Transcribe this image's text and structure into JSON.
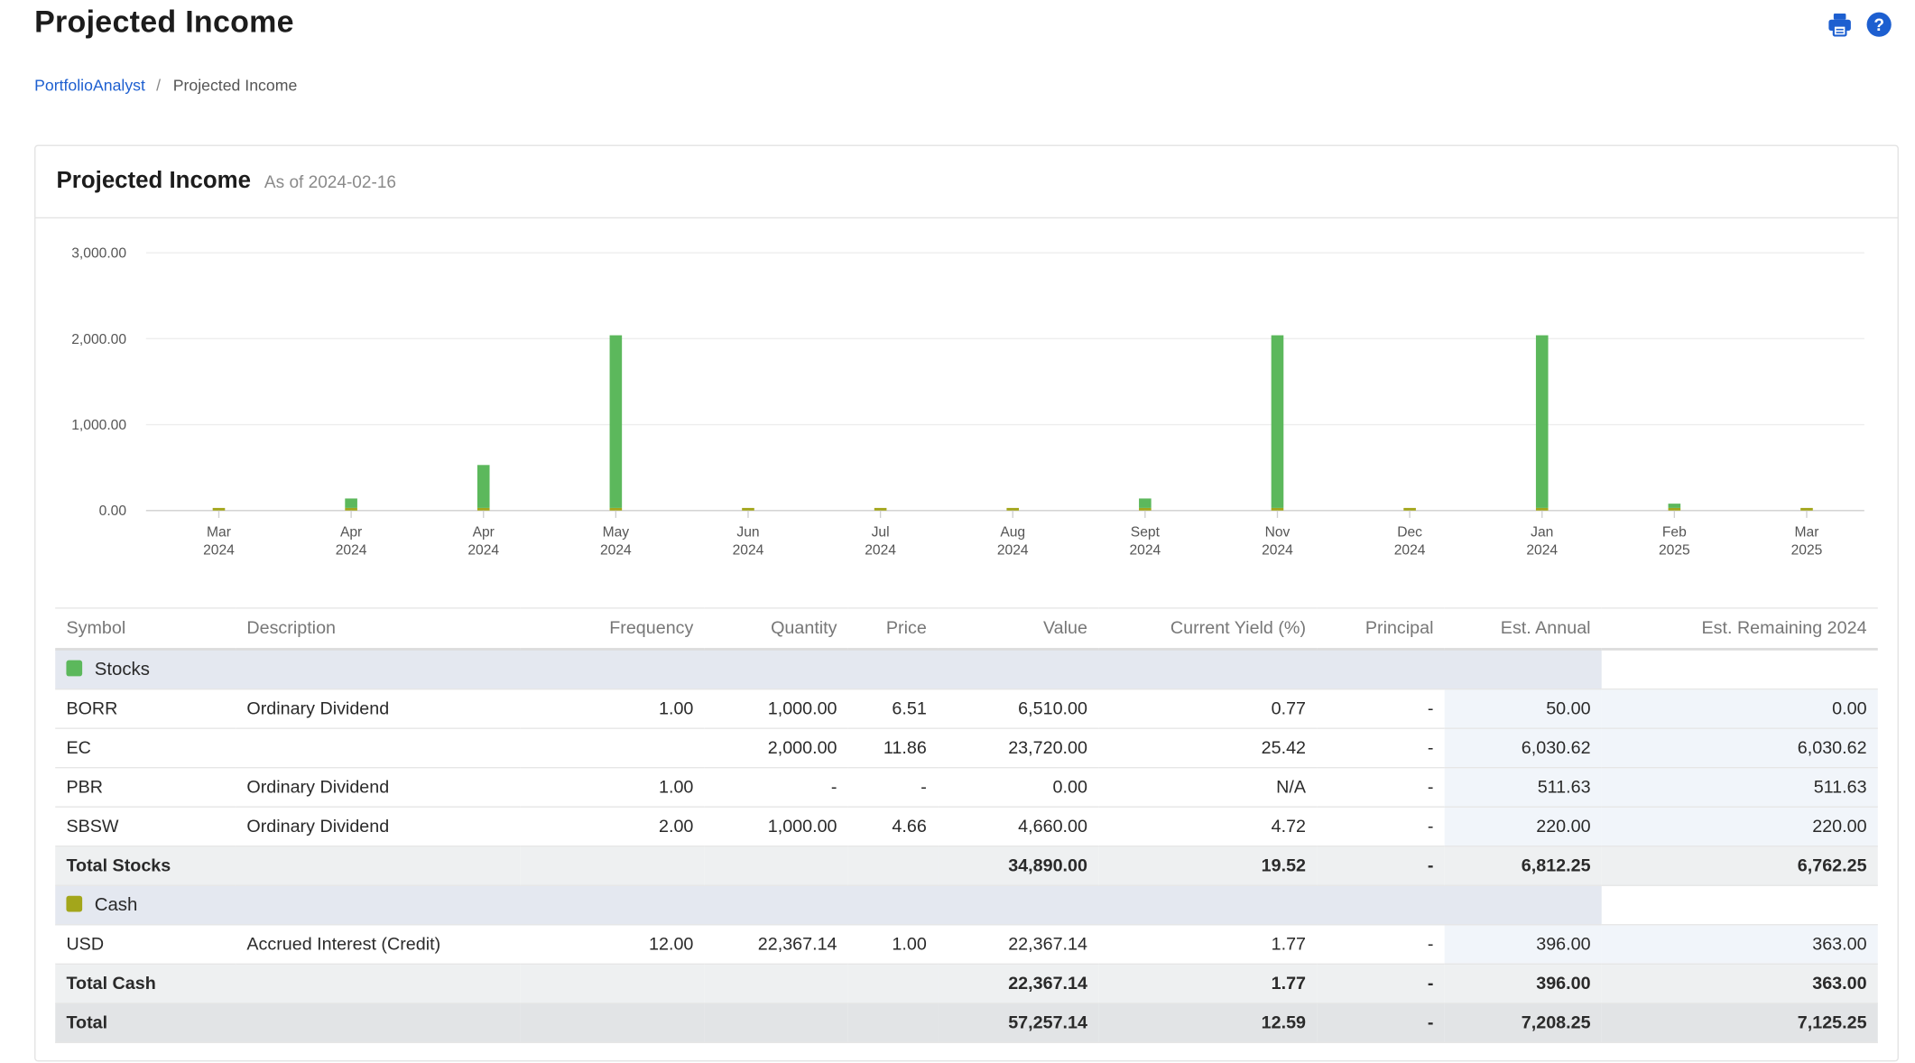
{
  "page": {
    "title": "Projected Income",
    "icons": {
      "print": "print-icon",
      "help": "help-icon",
      "help_glyph": "?"
    }
  },
  "breadcrumb": {
    "items": [
      "PortfolioAnalyst",
      "Projected Income"
    ],
    "separator": "/"
  },
  "panel": {
    "title": "Projected Income",
    "as_of": "As of 2024-02-16"
  },
  "colors": {
    "stocks": "#5cb85c",
    "cash": "#a3a61b",
    "accent": "#1d5fd0"
  },
  "chart_data": {
    "type": "bar",
    "categories": [
      [
        "Mar",
        "2024"
      ],
      [
        "Apr",
        "2024"
      ],
      [
        "Apr",
        "2024"
      ],
      [
        "May",
        "2024"
      ],
      [
        "Jun",
        "2024"
      ],
      [
        "Jul",
        "2024"
      ],
      [
        "Aug",
        "2024"
      ],
      [
        "Sept",
        "2024"
      ],
      [
        "Nov",
        "2024"
      ],
      [
        "Dec",
        "2024"
      ],
      [
        "Jan",
        "2024"
      ],
      [
        "Feb",
        "2025"
      ],
      [
        "Mar",
        "2025"
      ]
    ],
    "series": [
      {
        "name": "Stocks",
        "color": "#5cb85c",
        "values": [
          0,
          110,
          500,
          2010,
          0,
          0,
          0,
          110,
          2010,
          0,
          2010,
          50,
          0
        ]
      },
      {
        "name": "Cash",
        "color": "#a3a61b",
        "values": [
          30,
          30,
          30,
          30,
          30,
          30,
          30,
          30,
          30,
          30,
          30,
          30,
          30
        ]
      }
    ],
    "stacked": true,
    "yticks": [
      "0.00",
      "1,000.00",
      "2,000.00",
      "3,000.00"
    ],
    "ylim": [
      0,
      3000
    ],
    "grid": true
  },
  "table": {
    "columns": [
      "Symbol",
      "Description",
      "Frequency",
      "Quantity",
      "Price",
      "Value",
      "Current Yield (%)",
      "Principal",
      "Est. Annual",
      "Est. Remaining 2024"
    ],
    "groups": [
      {
        "name": "Stocks",
        "color": "#5cb85c",
        "rows": [
          [
            "BORR",
            "Ordinary Dividend",
            "1.00",
            "1,000.00",
            "6.51",
            "6,510.00",
            "0.77",
            "-",
            "50.00",
            "0.00"
          ],
          [
            "EC",
            "",
            "",
            "2,000.00",
            "11.86",
            "23,720.00",
            "25.42",
            "-",
            "6,030.62",
            "6,030.62"
          ],
          [
            "PBR",
            "Ordinary Dividend",
            "1.00",
            "-",
            "-",
            "0.00",
            "N/A",
            "-",
            "511.63",
            "511.63"
          ],
          [
            "SBSW",
            "Ordinary Dividend",
            "2.00",
            "1,000.00",
            "4.66",
            "4,660.00",
            "4.72",
            "-",
            "220.00",
            "220.00"
          ]
        ],
        "total": {
          "label": "Total Stocks",
          "value": "34,890.00",
          "yield": "19.52",
          "principal": "-",
          "annual": "6,812.25",
          "remaining": "6,762.25"
        }
      },
      {
        "name": "Cash",
        "color": "#a3a61b",
        "rows": [
          [
            "USD",
            "Accrued Interest (Credit)",
            "12.00",
            "22,367.14",
            "1.00",
            "22,367.14",
            "1.77",
            "-",
            "396.00",
            "363.00"
          ]
        ],
        "total": {
          "label": "Total Cash",
          "value": "22,367.14",
          "yield": "1.77",
          "principal": "-",
          "annual": "396.00",
          "remaining": "363.00"
        }
      }
    ],
    "grand_total": {
      "label": "Total",
      "value": "57,257.14",
      "yield": "12.59",
      "principal": "-",
      "annual": "7,208.25",
      "remaining": "7,125.25"
    }
  }
}
